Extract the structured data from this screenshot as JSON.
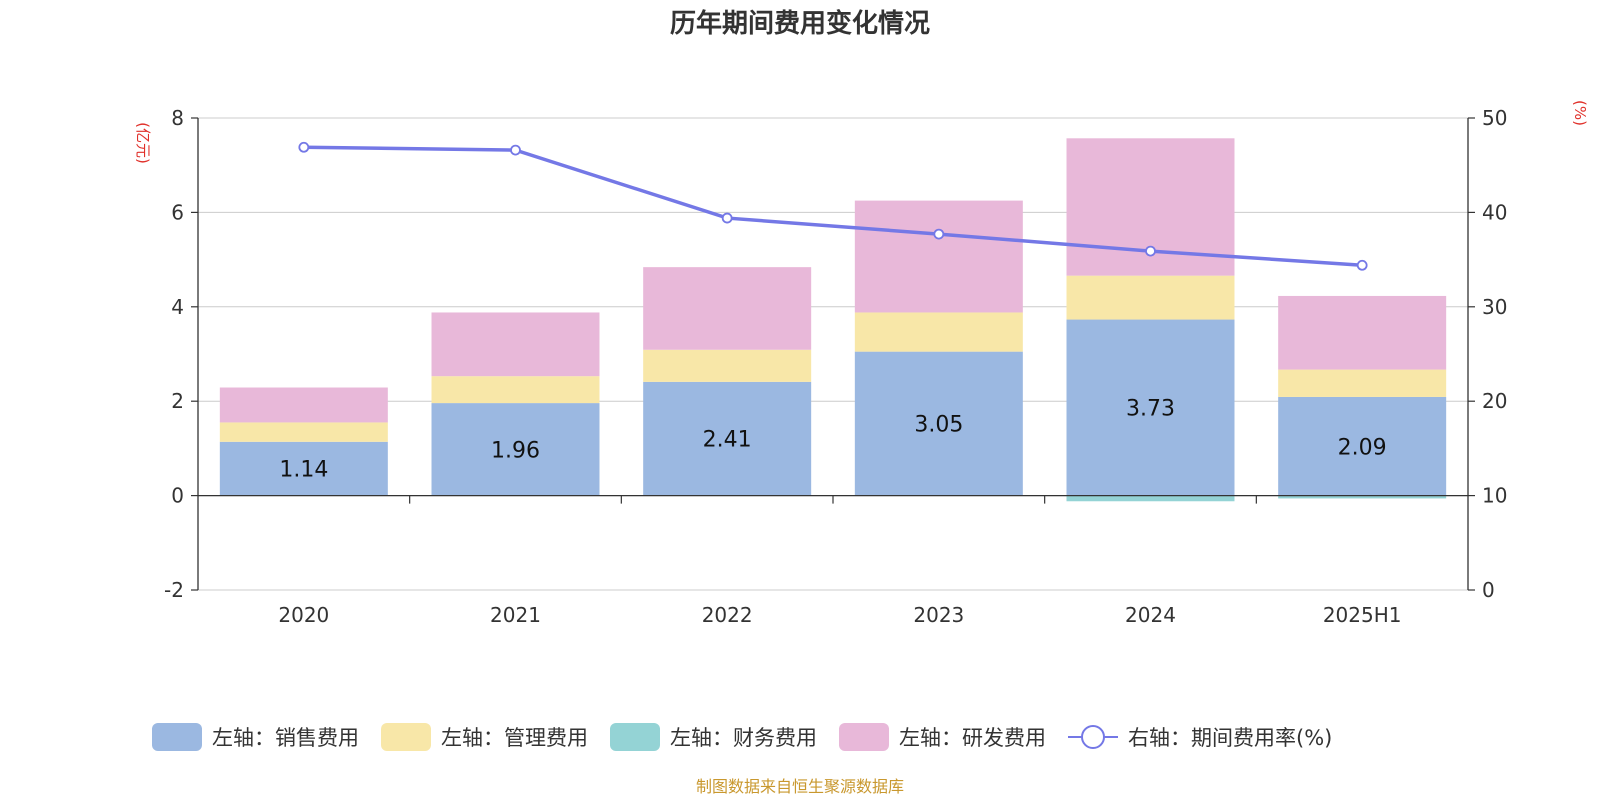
{
  "chart_data": {
    "type": "bar",
    "stacked": true,
    "title": "历年期间费用变化情况",
    "categories": [
      "2020",
      "2021",
      "2022",
      "2023",
      "2024",
      "2025H1"
    ],
    "y_left": {
      "unit": "(亿元)",
      "ylim": [
        -2,
        8
      ],
      "ticks": [
        "-2",
        "0",
        "2",
        "4",
        "6",
        "8"
      ]
    },
    "y_right": {
      "unit": "(%)",
      "ylim": [
        0,
        50
      ],
      "ticks": [
        "0",
        "10",
        "20",
        "30",
        "40",
        "50"
      ]
    },
    "series": [
      {
        "name": "左轴：销售费用",
        "type": "bar",
        "axis": "left",
        "color": "#9bb8e1",
        "values": [
          1.14,
          1.96,
          2.41,
          3.05,
          3.73,
          2.09
        ],
        "show_labels": true
      },
      {
        "name": "左轴：管理费用",
        "type": "bar",
        "axis": "left",
        "color": "#f8e7a8",
        "values": [
          0.41,
          0.57,
          0.68,
          0.83,
          0.93,
          0.58
        ],
        "show_labels": false
      },
      {
        "name": "左轴：财务费用",
        "type": "bar",
        "axis": "left",
        "color": "#94d3d5",
        "values": [
          0.0,
          0.0,
          0.0,
          0.0,
          -0.12,
          -0.06
        ],
        "show_labels": false
      },
      {
        "name": "左轴：研发费用",
        "type": "bar",
        "axis": "left",
        "color": "#e8b8d9",
        "values": [
          0.74,
          1.35,
          1.75,
          2.37,
          2.91,
          1.56
        ],
        "show_labels": false
      },
      {
        "name": "右轴：期间费用率(%)",
        "type": "line",
        "axis": "right",
        "color": "#7478e6",
        "values": [
          46.9,
          46.6,
          39.4,
          37.7,
          35.9,
          34.4
        ]
      }
    ],
    "grid": true,
    "legend_position": "bottom"
  },
  "source_note": "制图数据来自恒生聚源数据库"
}
